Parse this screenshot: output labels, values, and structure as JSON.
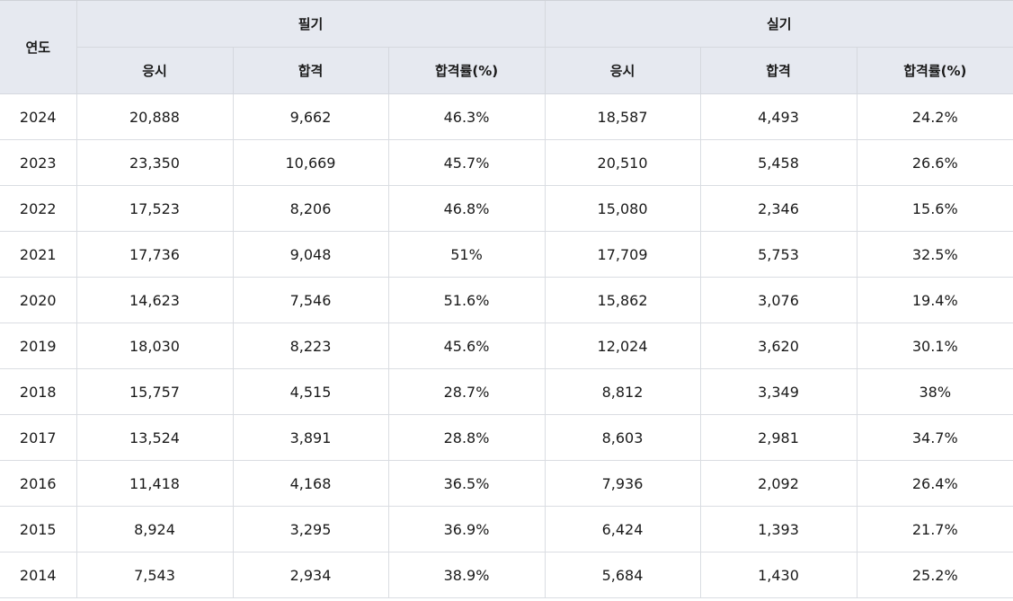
{
  "header": {
    "year": "연도",
    "written": "필기",
    "practical": "실기",
    "sub": [
      "응시",
      "합격",
      "합격률(%)"
    ]
  },
  "rows": [
    [
      "2024",
      "20,888",
      "9,662",
      "46.3%",
      "18,587",
      "4,493",
      "24.2%"
    ],
    [
      "2023",
      "23,350",
      "10,669",
      "45.7%",
      "20,510",
      "5,458",
      "26.6%"
    ],
    [
      "2022",
      "17,523",
      "8,206",
      "46.8%",
      "15,080",
      "2,346",
      "15.6%"
    ],
    [
      "2021",
      "17,736",
      "9,048",
      "51%",
      "17,709",
      "5,753",
      "32.5%"
    ],
    [
      "2020",
      "14,623",
      "7,546",
      "51.6%",
      "15,862",
      "3,076",
      "19.4%"
    ],
    [
      "2019",
      "18,030",
      "8,223",
      "45.6%",
      "12,024",
      "3,620",
      "30.1%"
    ],
    [
      "2018",
      "15,757",
      "4,515",
      "28.7%",
      "8,812",
      "3,349",
      "38%"
    ],
    [
      "2017",
      "13,524",
      "3,891",
      "28.8%",
      "8,603",
      "2,981",
      "34.7%"
    ],
    [
      "2016",
      "11,418",
      "4,168",
      "36.5%",
      "7,936",
      "2,092",
      "26.4%"
    ],
    [
      "2015",
      "8,924",
      "3,295",
      "36.9%",
      "6,424",
      "1,393",
      "21.7%"
    ],
    [
      "2014",
      "7,543",
      "2,934",
      "38.9%",
      "5,684",
      "1,430",
      "25.2%"
    ]
  ]
}
